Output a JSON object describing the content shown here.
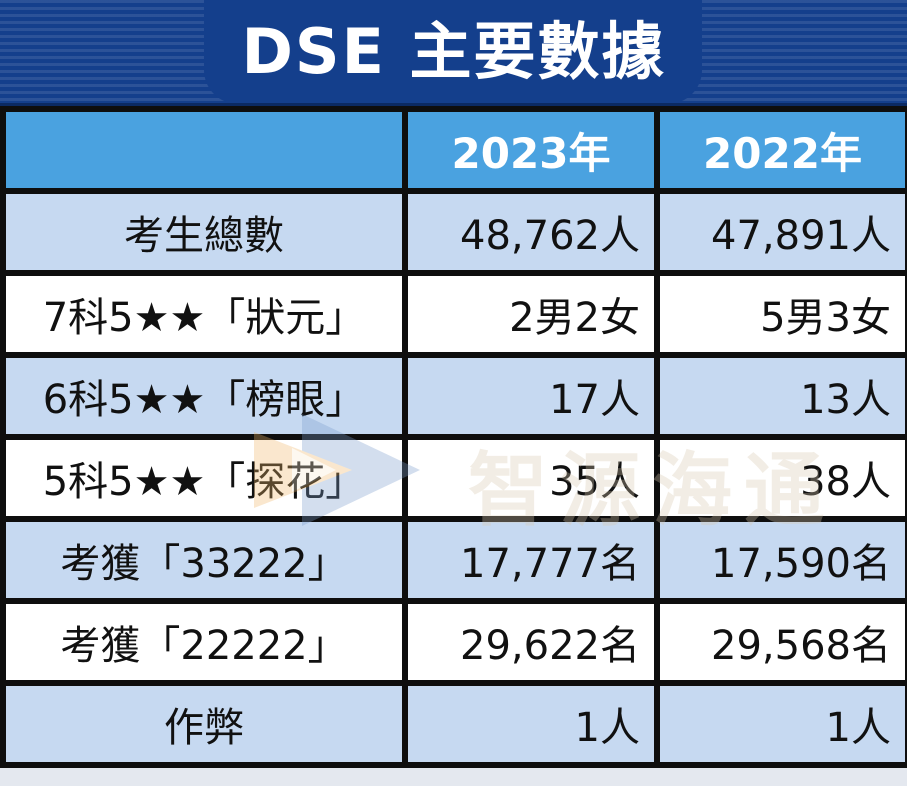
{
  "title": "DSE 主要數據",
  "table": {
    "header": [
      "",
      "2023年",
      "2022年"
    ],
    "rows": [
      {
        "label": "考生總數",
        "y2023": "48,762人",
        "y2022": "47,891人"
      },
      {
        "label": "7科5★★「狀元」",
        "y2023": "2男2女",
        "y2022": "5男3女"
      },
      {
        "label": "6科5★★「榜眼」",
        "y2023": "17人",
        "y2022": "13人"
      },
      {
        "label": "5科5★★「探花」",
        "y2023": "35人",
        "y2022": "38人"
      },
      {
        "label": "考獲「33222」",
        "y2023": "17,777名",
        "y2022": "17,590名"
      },
      {
        "label": "考獲「22222」",
        "y2023": "29,622名",
        "y2022": "29,568名"
      },
      {
        "label": "作弊",
        "y2023": "1人",
        "y2022": "1人"
      }
    ]
  },
  "watermark": {
    "text": "智源海通",
    "icon": "play-arrow-icon"
  },
  "colors": {
    "banner": "#143f8c",
    "header": "#4aa2e0",
    "row_blue": "#c6d9f1",
    "row_white": "#ffffff",
    "grid": "#0e0e0e"
  }
}
